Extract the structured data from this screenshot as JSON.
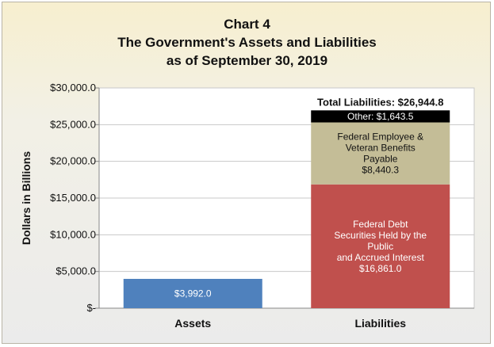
{
  "chart_data": {
    "type": "bar",
    "stacked": true,
    "title_lines": [
      "Chart 4",
      "The Government's Assets and Liabilities",
      "as of September 30, 2019"
    ],
    "ylabel": "Dollars in Billions",
    "ylim": [
      0,
      30000
    ],
    "yticks": [
      0,
      5000,
      10000,
      15000,
      20000,
      25000,
      30000
    ],
    "ytick_labels": [
      "$-",
      "$5,000.0",
      "$10,000.0",
      "$15,000.0",
      "$20,000.0",
      "$25,000.0",
      "$30,000.0"
    ],
    "gridlines": true,
    "categories": [
      "Assets",
      "Liabilities"
    ],
    "bars": [
      {
        "category": "Assets",
        "segments": [
          {
            "value": 3992.0,
            "color": "#4f81bd",
            "label_lines": [
              "$3,992.0"
            ],
            "label_color": "#ffffff"
          }
        ]
      },
      {
        "category": "Liabilities",
        "total_label": "Total Liabilities: $26,944.8",
        "segments": [
          {
            "value": 16861.0,
            "color": "#c0504d",
            "label_lines": [
              "Federal Debt",
              "Securities Held by the",
              "Public",
              "and Accrued Interest",
              "$16,861.0"
            ],
            "label_color": "#ffffff"
          },
          {
            "value": 8440.3,
            "color": "#c4bd97",
            "label_lines": [
              "Federal Employee &",
              "Veteran Benefits",
              "Payable",
              "$8,440.3"
            ],
            "label_color": "#111111"
          },
          {
            "value": 1643.5,
            "color": "#000000",
            "label_lines": [
              "Other:  $1,643.5"
            ],
            "label_color": "#ffffff"
          }
        ]
      }
    ]
  }
}
